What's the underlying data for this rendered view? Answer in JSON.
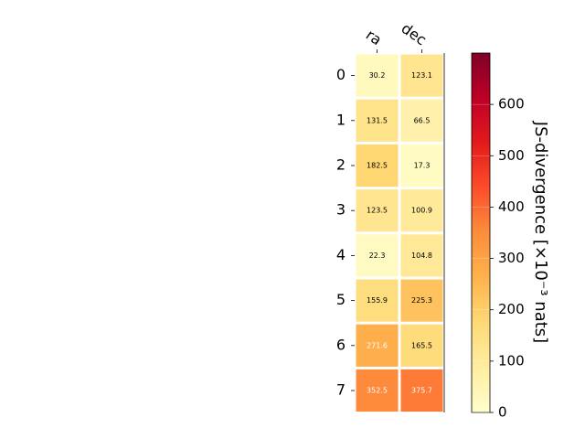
{
  "chart_data": {
    "type": "heatmap",
    "columns": [
      "ra",
      "dec"
    ],
    "rows": [
      "0",
      "1",
      "2",
      "3",
      "4",
      "5",
      "6",
      "7"
    ],
    "values": [
      [
        30.2,
        123.1
      ],
      [
        131.5,
        66.5
      ],
      [
        182.5,
        17.3
      ],
      [
        123.5,
        100.9
      ],
      [
        22.3,
        104.8
      ],
      [
        155.9,
        225.3
      ],
      [
        271.6,
        165.5
      ],
      [
        352.5,
        375.7
      ]
    ],
    "cell_labels": [
      [
        "30.2",
        "123.1"
      ],
      [
        "131.5",
        "66.5"
      ],
      [
        "182.5",
        "17.3"
      ],
      [
        "123.5",
        "100.9"
      ],
      [
        "22.3",
        "104.8"
      ],
      [
        "155.9",
        "225.3"
      ],
      [
        "271.6",
        "165.5"
      ],
      [
        "352.5",
        "375.7"
      ]
    ],
    "colorbar": {
      "label": "JS-divergence [×10⁻³ nats]",
      "range": [
        0,
        700
      ],
      "ticks": [
        0,
        100,
        200,
        300,
        400,
        500,
        600
      ],
      "tick_labels": [
        "0",
        "100",
        "200",
        "300",
        "400",
        "500",
        "600"
      ],
      "colormap": "YlOrRd",
      "colormap_stops": [
        "#ffffcc",
        "#ffeda0",
        "#fed976",
        "#feb24c",
        "#fd8d3c",
        "#fc4e2a",
        "#e31a1c",
        "#bd0026",
        "#800026"
      ]
    },
    "grid": false
  }
}
